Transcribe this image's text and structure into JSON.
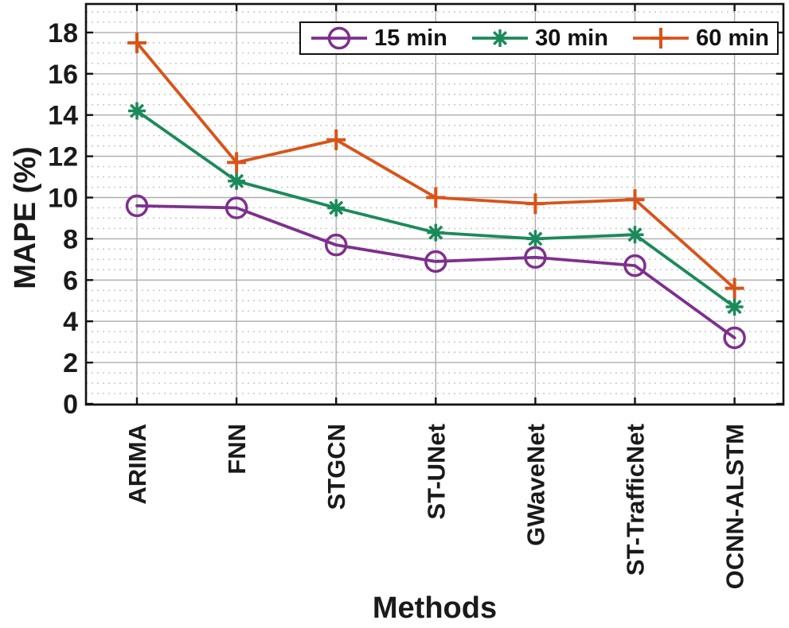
{
  "chart_data": {
    "type": "line",
    "title": "",
    "xlabel": "Methods",
    "ylabel": "MAPE (%)",
    "ylim": [
      0,
      18
    ],
    "ytick_step": 2,
    "yminor_step": 0.5,
    "grid": "major solid + minor dotted horizontal",
    "legend_position": "top inside plot",
    "categories": [
      "ARIMA",
      "FNN",
      "STGCN",
      "ST-UNet",
      "GWaveNet",
      "ST-TrafficNet",
      "OCNN-ALSTM"
    ],
    "series": [
      {
        "name": "15 min",
        "marker": "circle",
        "color": "#7E2F8E",
        "values": [
          9.6,
          9.5,
          7.7,
          6.9,
          7.1,
          6.7,
          3.2
        ]
      },
      {
        "name": "30 min",
        "marker": "asterisk",
        "color": "#1B8A5A",
        "values": [
          14.2,
          10.8,
          9.5,
          8.3,
          8.0,
          8.2,
          4.7
        ]
      },
      {
        "name": "60 min",
        "marker": "plus",
        "color": "#D95319",
        "values": [
          17.5,
          11.7,
          12.8,
          10.0,
          9.7,
          9.9,
          5.6
        ]
      }
    ],
    "colors": {
      "axis_text": "#1a1a1a",
      "box": "#111111",
      "grid_major": "#adadad",
      "grid_minor": "#c4c4c4",
      "background": "#ffffff"
    }
  }
}
